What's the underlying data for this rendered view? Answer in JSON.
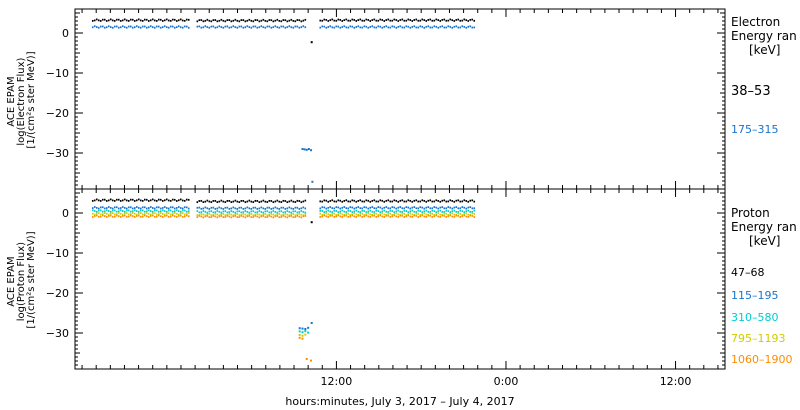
{
  "chart_data": [
    {
      "type": "scatter",
      "panel": "electron",
      "ylabel_lines": [
        "ACE EPAM",
        "log(Electron Flux)",
        "[1/(cm²s ster MeV)]"
      ],
      "legend_title_lines": [
        "Electron",
        "Energy ran",
        "[keV]"
      ],
      "ylim": [
        -39,
        6
      ],
      "yticks": [
        0,
        -10,
        -20,
        -30
      ],
      "ytick_labels": [
        "0",
        "−10",
        "−20",
        "−30"
      ],
      "series": [
        {
          "name": "38–53",
          "color": "#000000",
          "segments": [
            {
              "x": [
                -5.3,
                1.5
              ],
              "y": 3.2
            },
            {
              "x": [
                2.1,
                9.8
              ],
              "y": 3.1
            },
            {
              "x": [
                10.8,
                21.8
              ],
              "y": 3.2
            }
          ],
          "points": [
            {
              "x": 10.25,
              "y": -2.3
            }
          ]
        },
        {
          "name": "175–315",
          "color": "#1874cd",
          "segments": [
            {
              "x": [
                -5.3,
                1.5
              ],
              "y": 1.5
            },
            {
              "x": [
                2.1,
                9.8
              ],
              "y": 1.5
            },
            {
              "x": [
                10.8,
                21.8
              ],
              "y": 1.5
            }
          ],
          "points": [
            {
              "x": 9.6,
              "y": -29.0
            },
            {
              "x": 9.75,
              "y": -29.1
            },
            {
              "x": 9.9,
              "y": -29.2
            },
            {
              "x": 10.05,
              "y": -29.0
            },
            {
              "x": 10.2,
              "y": -29.3
            },
            {
              "x": 10.3,
              "y": -37.2
            }
          ]
        }
      ]
    },
    {
      "type": "scatter",
      "panel": "proton",
      "ylabel_lines": [
        "ACE EPAM",
        "log(Proton Flux)",
        "[1/(cm²s ster MeV)]"
      ],
      "legend_title_lines": [
        "Proton",
        "Energy ran",
        "[keV]"
      ],
      "ylim": [
        -39,
        6
      ],
      "yticks": [
        0,
        -10,
        -20,
        -30
      ],
      "ytick_labels": [
        "0",
        "−10",
        "−20",
        "−30"
      ],
      "series": [
        {
          "name": "47–68",
          "color": "#000000",
          "segments": [
            {
              "x": [
                -5.3,
                1.5
              ],
              "y": 3.2
            },
            {
              "x": [
                2.1,
                9.8
              ],
              "y": 2.9
            },
            {
              "x": [
                10.8,
                21.8
              ],
              "y": 3.0
            }
          ],
          "points": [
            {
              "x": 10.25,
              "y": -2.3
            }
          ]
        },
        {
          "name": "115–195",
          "color": "#1874cd",
          "segments": [
            {
              "x": [
                -5.3,
                1.5
              ],
              "y": 1.3
            },
            {
              "x": [
                2.1,
                9.8
              ],
              "y": 1.2
            },
            {
              "x": [
                10.8,
                21.8
              ],
              "y": 1.3
            }
          ],
          "points": [
            {
              "x": 9.4,
              "y": -28.8
            },
            {
              "x": 9.6,
              "y": -28.9
            },
            {
              "x": 9.8,
              "y": -29.0
            },
            {
              "x": 10.0,
              "y": -28.7
            },
            {
              "x": 10.25,
              "y": -27.5
            }
          ]
        },
        {
          "name": "310–580",
          "color": "#00cdcd",
          "segments": [
            {
              "x": [
                -5.3,
                1.5
              ],
              "y": 0.5
            },
            {
              "x": [
                2.1,
                9.8
              ],
              "y": 0.3
            },
            {
              "x": [
                10.8,
                21.8
              ],
              "y": 0.4
            }
          ],
          "points": [
            {
              "x": 9.4,
              "y": -29.6
            },
            {
              "x": 9.6,
              "y": -29.8
            },
            {
              "x": 9.8,
              "y": -29.5
            },
            {
              "x": 10.0,
              "y": -29.9
            }
          ]
        },
        {
          "name": "795–1193",
          "color": "#cdcd00",
          "segments": [
            {
              "x": [
                -5.3,
                1.5
              ],
              "y": -0.2
            },
            {
              "x": [
                2.1,
                9.8
              ],
              "y": -0.4
            },
            {
              "x": [
                10.8,
                21.8
              ],
              "y": -0.3
            }
          ],
          "points": [
            {
              "x": 9.4,
              "y": -30.5
            },
            {
              "x": 9.6,
              "y": -30.7
            },
            {
              "x": 9.8,
              "y": -30.4
            }
          ]
        },
        {
          "name": "1060–1900",
          "color": "#ff8c00",
          "segments": [
            {
              "x": [
                -5.3,
                1.5
              ],
              "y": -0.8
            },
            {
              "x": [
                2.1,
                9.8
              ],
              "y": -0.9
            },
            {
              "x": [
                10.8,
                21.8
              ],
              "y": -0.8
            }
          ],
          "points": [
            {
              "x": 9.4,
              "y": -31.2
            },
            {
              "x": 9.6,
              "y": -31.4
            },
            {
              "x": 9.9,
              "y": -36.5
            },
            {
              "x": 10.2,
              "y": -36.9
            }
          ]
        }
      ]
    }
  ],
  "xaxis": {
    "xlim": [
      -6.5,
      39.5
    ],
    "ticks": [
      12,
      24,
      36
    ],
    "tick_labels": [
      "12:00",
      "0:00",
      "12:00"
    ],
    "minor_step": 1,
    "label": "hours:minutes, July  3, 2017 – July  4, 2017"
  }
}
